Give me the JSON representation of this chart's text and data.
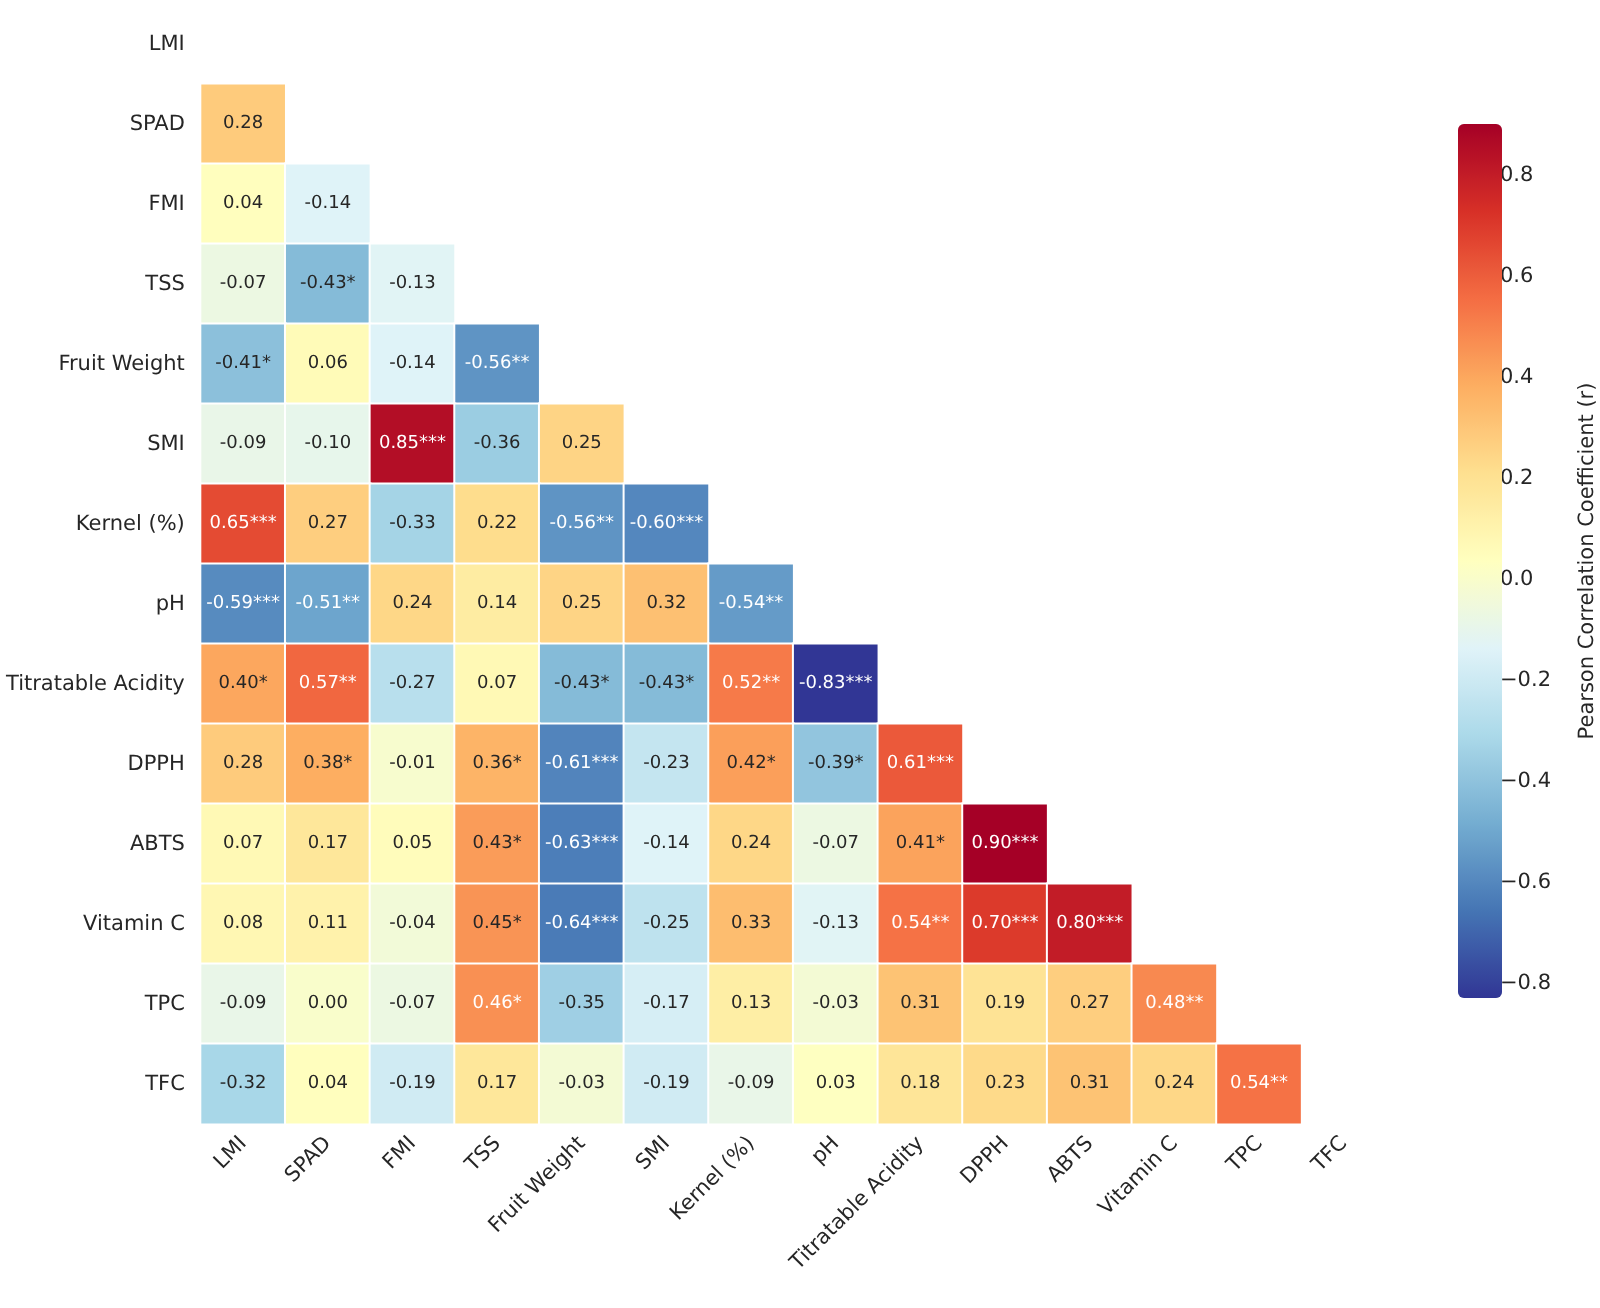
{
  "chart_data": {
    "type": "heatmap",
    "clabel": "Pearson Correlation Coefficient (r)",
    "categories": [
      "LMI",
      "SPAD",
      "FMI",
      "TSS",
      "Fruit Weight",
      "SMI",
      "Kernel (%)",
      "pH",
      "Titratable Acidity",
      "DPPH",
      "ABTS",
      "Vitamin C",
      "TPC",
      "TFC"
    ],
    "y_categories": [
      "LMI",
      "SPAD",
      "FMI",
      "TSS",
      "Fruit Weight",
      "SMI",
      "Kernel (%)",
      "pH",
      "Titratable Acidity",
      "DPPH",
      "ABTS",
      "Vitamin C",
      "TPC",
      "TFC"
    ],
    "cells": [
      [
        null,
        null,
        null,
        null,
        null,
        null,
        null,
        null,
        null,
        null,
        null,
        null,
        null,
        null
      ],
      [
        0.28,
        null,
        null,
        null,
        null,
        null,
        null,
        null,
        null,
        null,
        null,
        null,
        null,
        null
      ],
      [
        0.04,
        -0.14,
        null,
        null,
        null,
        null,
        null,
        null,
        null,
        null,
        null,
        null,
        null,
        null
      ],
      [
        -0.07,
        -0.43,
        -0.13,
        null,
        null,
        null,
        null,
        null,
        null,
        null,
        null,
        null,
        null,
        null
      ],
      [
        -0.41,
        0.06,
        -0.14,
        -0.56,
        null,
        null,
        null,
        null,
        null,
        null,
        null,
        null,
        null,
        null
      ],
      [
        -0.09,
        -0.1,
        0.85,
        -0.36,
        0.25,
        null,
        null,
        null,
        null,
        null,
        null,
        null,
        null,
        null
      ],
      [
        0.65,
        0.27,
        -0.33,
        0.22,
        -0.56,
        -0.6,
        null,
        null,
        null,
        null,
        null,
        null,
        null,
        null
      ],
      [
        -0.59,
        -0.51,
        0.24,
        0.14,
        0.25,
        0.32,
        -0.54,
        null,
        null,
        null,
        null,
        null,
        null,
        null
      ],
      [
        0.4,
        0.57,
        -0.27,
        0.07,
        -0.43,
        -0.43,
        0.52,
        -0.83,
        null,
        null,
        null,
        null,
        null,
        null
      ],
      [
        0.28,
        0.38,
        -0.01,
        0.36,
        -0.61,
        -0.23,
        0.42,
        -0.39,
        0.61,
        null,
        null,
        null,
        null,
        null
      ],
      [
        0.07,
        0.17,
        0.05,
        0.43,
        -0.63,
        -0.14,
        0.24,
        -0.07,
        0.41,
        0.9,
        null,
        null,
        null,
        null
      ],
      [
        0.08,
        0.11,
        -0.04,
        0.45,
        -0.64,
        -0.25,
        0.33,
        -0.13,
        0.54,
        0.7,
        0.8,
        null,
        null,
        null
      ],
      [
        -0.09,
        0.0,
        -0.07,
        0.46,
        -0.35,
        -0.17,
        0.13,
        -0.03,
        0.31,
        0.19,
        0.27,
        0.48,
        null,
        null
      ],
      [
        -0.32,
        0.04,
        -0.19,
        0.17,
        -0.03,
        -0.19,
        -0.09,
        0.03,
        0.18,
        0.23,
        0.31,
        0.24,
        0.54,
        null
      ]
    ],
    "cell_labels": [
      [
        null,
        null,
        null,
        null,
        null,
        null,
        null,
        null,
        null,
        null,
        null,
        null,
        null,
        null
      ],
      [
        "0.28",
        null,
        null,
        null,
        null,
        null,
        null,
        null,
        null,
        null,
        null,
        null,
        null,
        null
      ],
      [
        "0.04",
        "-0.14",
        null,
        null,
        null,
        null,
        null,
        null,
        null,
        null,
        null,
        null,
        null,
        null
      ],
      [
        "-0.07",
        "-0.43*",
        "-0.13",
        null,
        null,
        null,
        null,
        null,
        null,
        null,
        null,
        null,
        null,
        null
      ],
      [
        "-0.41*",
        "0.06",
        "-0.14",
        "-0.56**",
        null,
        null,
        null,
        null,
        null,
        null,
        null,
        null,
        null,
        null
      ],
      [
        "-0.09",
        "-0.10",
        "0.85***",
        "-0.36",
        "0.25",
        null,
        null,
        null,
        null,
        null,
        null,
        null,
        null,
        null
      ],
      [
        "0.65***",
        "0.27",
        "-0.33",
        "0.22",
        "-0.56**",
        "-0.60***",
        null,
        null,
        null,
        null,
        null,
        null,
        null,
        null
      ],
      [
        "-0.59***",
        "-0.51**",
        "0.24",
        "0.14",
        "0.25",
        "0.32",
        "-0.54**",
        null,
        null,
        null,
        null,
        null,
        null,
        null
      ],
      [
        "0.40*",
        "0.57**",
        "-0.27",
        "0.07",
        "-0.43*",
        "-0.43*",
        "0.52**",
        "-0.83***",
        null,
        null,
        null,
        null,
        null,
        null
      ],
      [
        "0.28",
        "0.38*",
        "-0.01",
        "0.36*",
        "-0.61***",
        "-0.23",
        "0.42*",
        "-0.39*",
        "0.61***",
        null,
        null,
        null,
        null,
        null
      ],
      [
        "0.07",
        "0.17",
        "0.05",
        "0.43*",
        "-0.63***",
        "-0.14",
        "0.24",
        "-0.07",
        "0.41*",
        "0.90***",
        null,
        null,
        null,
        null
      ],
      [
        "0.08",
        "0.11",
        "-0.04",
        "0.45*",
        "-0.64***",
        "-0.25",
        "0.33",
        "-0.13",
        "0.54**",
        "0.70***",
        "0.80***",
        null,
        null,
        null
      ],
      [
        "-0.09",
        "0.00",
        "-0.07",
        "0.46*",
        "-0.35",
        "-0.17",
        "0.13",
        "-0.03",
        "0.31",
        "0.19",
        "0.27",
        "0.48**",
        null,
        null
      ],
      [
        "-0.32",
        "0.04",
        "-0.19",
        "0.17",
        "-0.03",
        "-0.19",
        "-0.09",
        "0.03",
        "0.18",
        "0.23",
        "0.31",
        "0.24",
        "0.54**",
        null
      ]
    ],
    "clim": [
      -0.83,
      0.9
    ],
    "cticks": [
      {
        "value": -0.8,
        "label": "−0.8"
      },
      {
        "value": -0.6,
        "label": "−0.6"
      },
      {
        "value": -0.4,
        "label": "−0.4"
      },
      {
        "value": -0.2,
        "label": "−0.2"
      },
      {
        "value": 0,
        "label": "0.0"
      },
      0.2,
      0.4,
      0.6,
      0.8
    ]
  }
}
